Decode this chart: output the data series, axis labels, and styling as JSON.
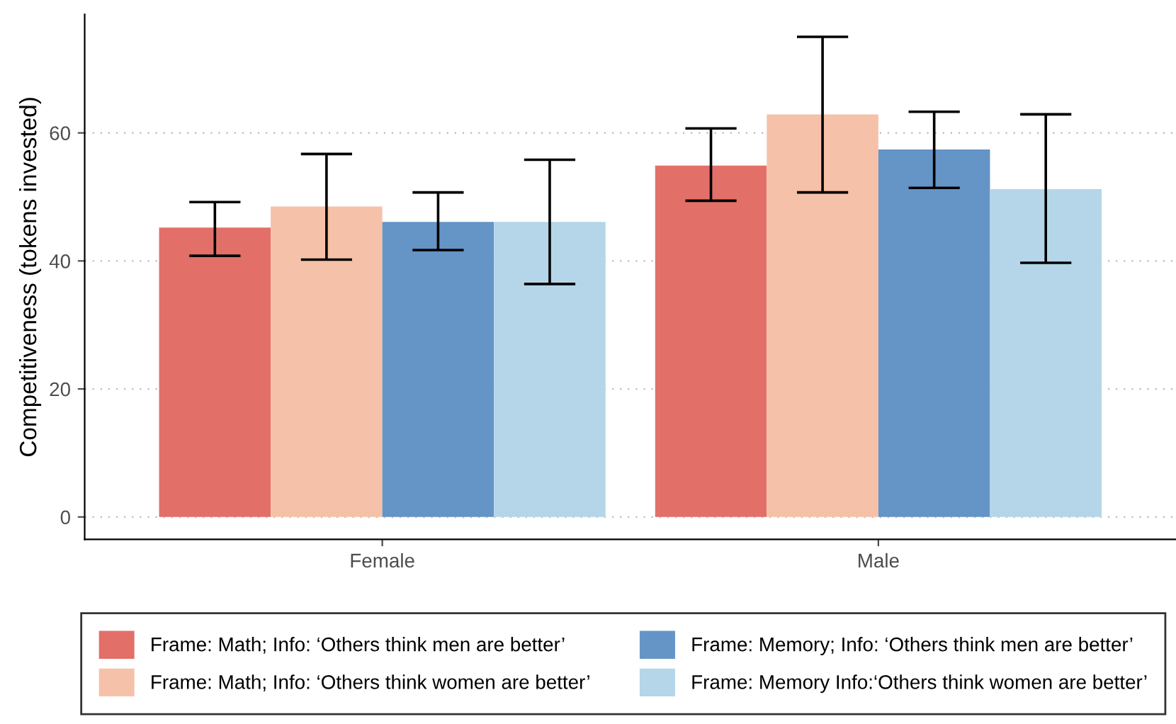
{
  "chart_data": {
    "type": "bar",
    "ylabel": "Competitiveness (tokens invested)",
    "categories": [
      "Female",
      "Male"
    ],
    "series": [
      {
        "name": "Frame: Math; Info: ‘Others think men are better’",
        "color": "#e36f69",
        "values": [
          45.2,
          54.9
        ],
        "errors": [
          [
            40.8,
            49.2
          ],
          [
            49.4,
            60.7
          ]
        ]
      },
      {
        "name": "Frame: Math; Info: ‘Others think women are better’",
        "color": "#f6c1a9",
        "values": [
          48.5,
          62.9
        ],
        "errors": [
          [
            40.2,
            56.7
          ],
          [
            50.7,
            75.0
          ]
        ]
      },
      {
        "name": "Frame: Memory; Info: ‘Others think men are better’",
        "color": "#6594c6",
        "values": [
          46.1,
          57.4
        ],
        "errors": [
          [
            41.7,
            50.7
          ],
          [
            51.4,
            63.3
          ]
        ]
      },
      {
        "name": "Frame: Memory Info:‘Others think women are better’",
        "color": "#b4d6e8",
        "values": [
          46.1,
          51.2
        ],
        "errors": [
          [
            36.4,
            55.8
          ],
          [
            39.7,
            62.9
          ]
        ]
      }
    ],
    "ylim": [
      -3.5,
      78.5
    ],
    "yticks": [
      0,
      20,
      40,
      60
    ],
    "grid": "y",
    "legend": "bottom"
  }
}
